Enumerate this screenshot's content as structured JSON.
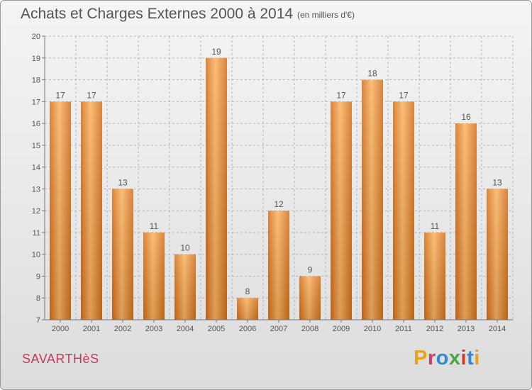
{
  "header": {
    "title": "Achats et Charges Externes 2000 à 2014",
    "subtitle": "(en milliers d'€)"
  },
  "footer": {
    "commune": "SAVARTHèS",
    "logo_text": "Proxiti",
    "logo_colors": [
      "#e8a317",
      "#cf3b6a",
      "#2e8bd1",
      "#49a83f",
      "#d43d2b",
      "#2e8bd1",
      "#e8a317"
    ]
  },
  "colors": {
    "bar_light": "#fbb363",
    "bar_dark": "#d2701a",
    "grid": "#b5b5b5",
    "text": "#555555"
  },
  "chart_data": {
    "type": "bar",
    "title": "Achats et Charges Externes 2000 à 2014",
    "subtitle": "(en milliers d'€)",
    "categories": [
      "2000",
      "2001",
      "2002",
      "2003",
      "2004",
      "2005",
      "2006",
      "2007",
      "2008",
      "2009",
      "2010",
      "2011",
      "2012",
      "2013",
      "2014"
    ],
    "values": [
      17,
      17,
      13,
      11,
      10,
      19,
      8,
      12,
      9,
      17,
      18,
      17,
      11,
      16,
      13
    ],
    "xlabel": "",
    "ylabel": "",
    "ylim": [
      7,
      20
    ],
    "yticks": [
      7,
      8,
      9,
      10,
      11,
      12,
      13,
      14,
      15,
      16,
      17,
      18,
      19,
      20
    ],
    "grid": true,
    "legend": "none"
  }
}
